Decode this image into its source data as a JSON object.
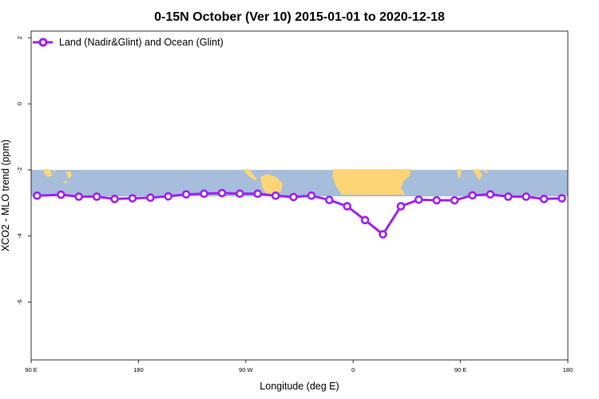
{
  "chart_data": {
    "type": "line",
    "title": "0-15N October (Ver 10)   2015-01-01 to 2020-12-18",
    "xlabel": "Longitude (deg E)",
    "ylabel": "XCO2 - MLO trend (ppm)",
    "xlim": [
      90,
      540
    ],
    "ylim": [
      -7.75,
      2.2
    ],
    "x_ticks": [
      {
        "value": 90,
        "label": "90 E"
      },
      {
        "value": 180,
        "label": "180"
      },
      {
        "value": 270,
        "label": "90 W"
      },
      {
        "value": 360,
        "label": "0"
      },
      {
        "value": 450,
        "label": "90 E"
      },
      {
        "value": 540,
        "label": "180"
      }
    ],
    "y_ticks": [
      {
        "value": 2,
        "label": "2"
      },
      {
        "value": 0,
        "label": "0"
      },
      {
        "value": -2,
        "label": "-2"
      },
      {
        "value": -4,
        "label": "-4"
      },
      {
        "value": -6,
        "label": "-6"
      }
    ],
    "map_band": {
      "ymin": -2.8,
      "ymax": -2.0,
      "ocean_color": "#a6bddb",
      "land_color": "#fdd576"
    },
    "series": [
      {
        "name": "Land (Nadir&Glint) and Ocean (Glint)",
        "color": "#a020f0",
        "x": [
          95,
          115,
          130,
          145,
          160,
          175,
          190,
          205,
          220,
          235,
          250,
          265,
          280,
          295,
          310,
          325,
          340,
          355,
          370,
          385,
          400,
          415,
          430,
          445,
          460,
          475,
          490,
          505,
          520,
          535
        ],
        "y": [
          -2.78,
          -2.75,
          -2.81,
          -2.81,
          -2.88,
          -2.86,
          -2.84,
          -2.8,
          -2.74,
          -2.72,
          -2.7,
          -2.72,
          -2.72,
          -2.78,
          -2.82,
          -2.78,
          -2.91,
          -3.1,
          -3.52,
          -3.95,
          -3.1,
          -2.9,
          -2.92,
          -2.92,
          -2.77,
          -2.74,
          -2.81,
          -2.81,
          -2.88,
          -2.86
        ]
      }
    ],
    "legend_position": "top-left"
  }
}
